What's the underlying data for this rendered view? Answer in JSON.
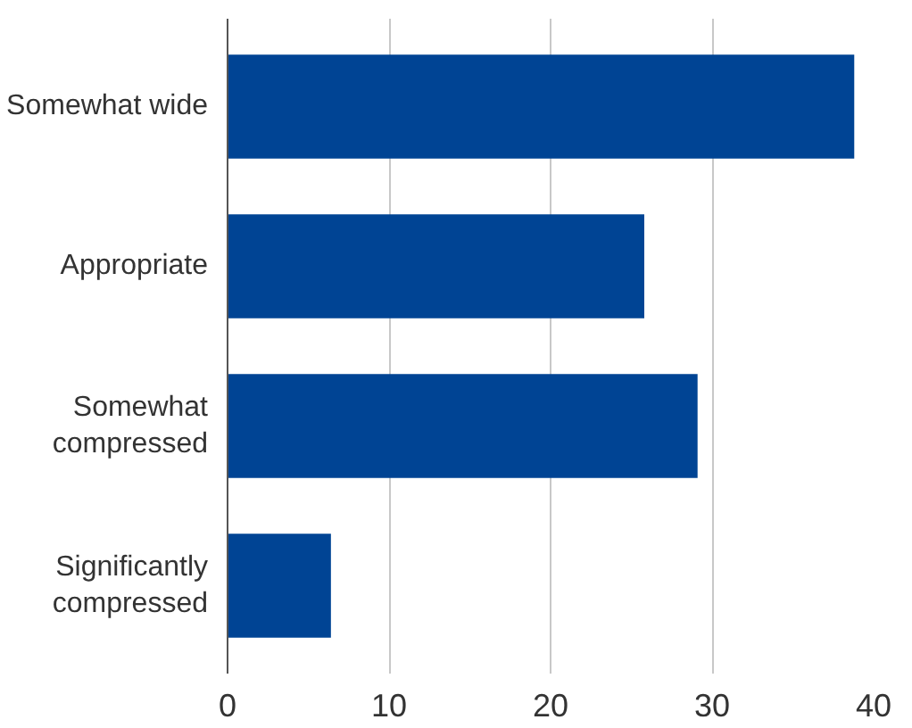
{
  "chart_data": {
    "type": "bar",
    "orientation": "horizontal",
    "categories": [
      "Somewhat wide",
      "Appropriate",
      "Somewhat\ncompressed",
      "Significantly\ncompressed"
    ],
    "values": [
      38.8,
      25.8,
      29.1,
      6.4
    ],
    "color": "#004494",
    "xlim": [
      0,
      40
    ],
    "xticks": [
      0,
      10,
      20,
      30,
      40
    ],
    "grid": "x"
  }
}
